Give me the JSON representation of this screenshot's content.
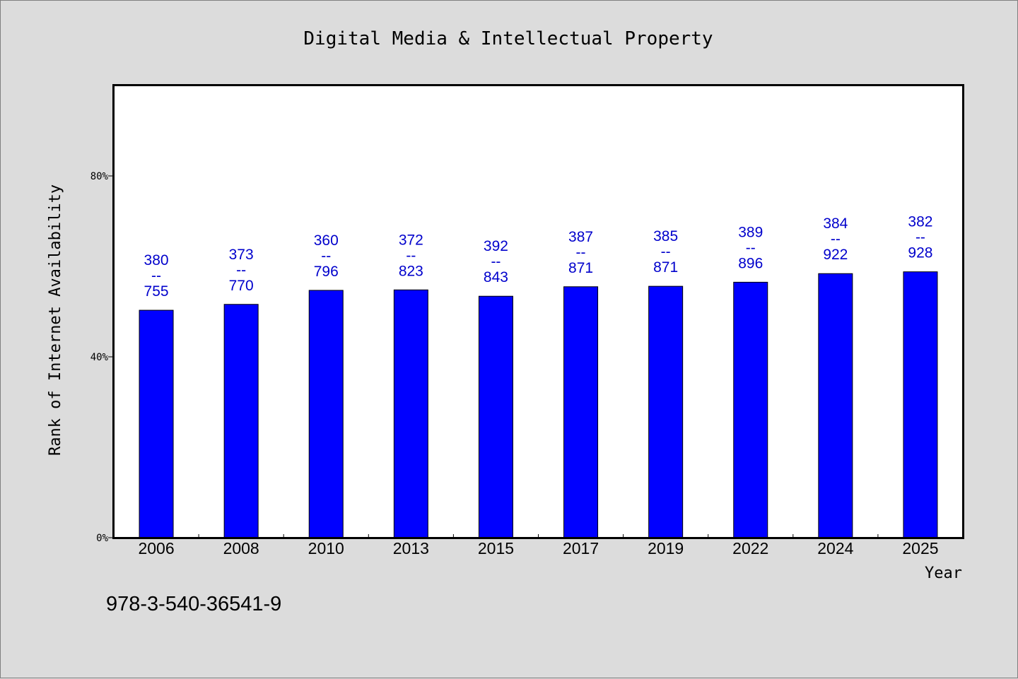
{
  "chart_data": {
    "type": "bar",
    "title": "Digital Media & Intellectual Property",
    "xlabel": "Year",
    "ylabel": "Rank of Internet Availability",
    "ylim": [
      0,
      100
    ],
    "yticks": [
      {
        "value": 0,
        "label": "0%"
      },
      {
        "value": 40,
        "label": "40%"
      },
      {
        "value": 80,
        "label": "80%"
      }
    ],
    "grid": false,
    "categories": [
      "2006",
      "2008",
      "2010",
      "2013",
      "2015",
      "2017",
      "2019",
      "2022",
      "2024",
      "2025"
    ],
    "values": [
      50.3,
      51.6,
      54.7,
      54.8,
      53.4,
      55.5,
      55.6,
      56.5,
      58.4,
      58.8
    ],
    "data_labels": [
      [
        "380",
        "--",
        "755"
      ],
      [
        "373",
        "--",
        "770"
      ],
      [
        "360",
        "--",
        "796"
      ],
      [
        "372",
        "--",
        "823"
      ],
      [
        "392",
        "--",
        "843"
      ],
      [
        "387",
        "--",
        "871"
      ],
      [
        "385",
        "--",
        "871"
      ],
      [
        "389",
        "--",
        "896"
      ],
      [
        "384",
        "--",
        "922"
      ],
      [
        "382",
        "--",
        "928"
      ]
    ],
    "bar_color": "#0000ff",
    "label_color": "#0000cc"
  },
  "footer": {
    "isbn": "978-3-540-36541-9"
  }
}
